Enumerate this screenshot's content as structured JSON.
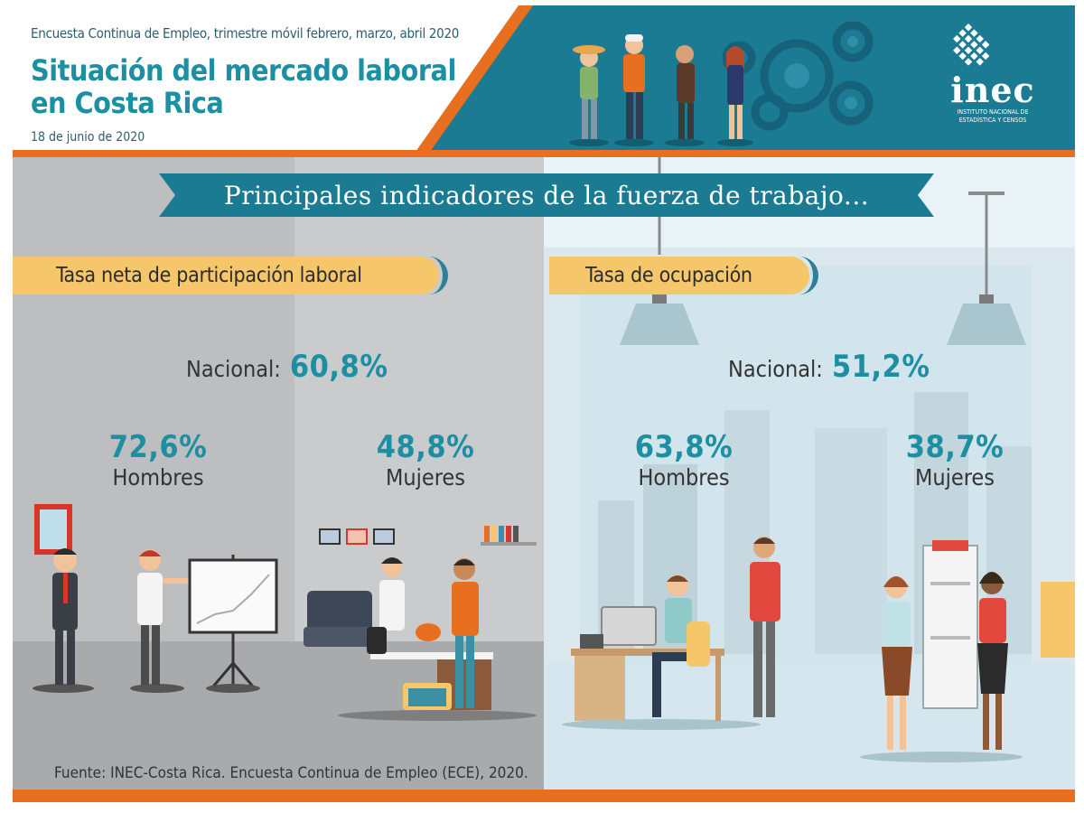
{
  "header": {
    "subtitle": "Encuesta Continua de Empleo, trimestre móvil febrero, marzo, abril 2020",
    "title_line1": "Situación del mercado laboral",
    "title_line2": "en Costa Rica",
    "date": "18 de junio de 2020",
    "logo_text": "inec",
    "logo_subtext_line1": "INSTITUTO NACIONAL DE",
    "logo_subtext_line2": "ESTADÍSTICA Y CENSOS"
  },
  "banner": {
    "text": "Principales indicadores de la fuerza de trabajo..."
  },
  "participation": {
    "tab_label": "Tasa neta de participación laboral",
    "national_label": "Nacional:",
    "national_value": "60,8%",
    "men_value": "72,6%",
    "men_label": "Hombres",
    "women_value": "48,8%",
    "women_label": "Mujeres"
  },
  "occupation": {
    "tab_label": "Tasa de ocupación",
    "national_label": "Nacional:",
    "national_value": "51,2%",
    "men_value": "63,8%",
    "men_label": "Hombres",
    "women_value": "38,7%",
    "women_label": "Mujeres"
  },
  "source": "Fuente: INEC-Costa Rica. Encuesta Continua de Empleo (ECE), 2020.",
  "colors": {
    "accent_teal": "#1d8fa3",
    "dark_teal": "#1a7b93",
    "orange": "#e86f1f",
    "tab_yellow": "#f6c66a"
  }
}
